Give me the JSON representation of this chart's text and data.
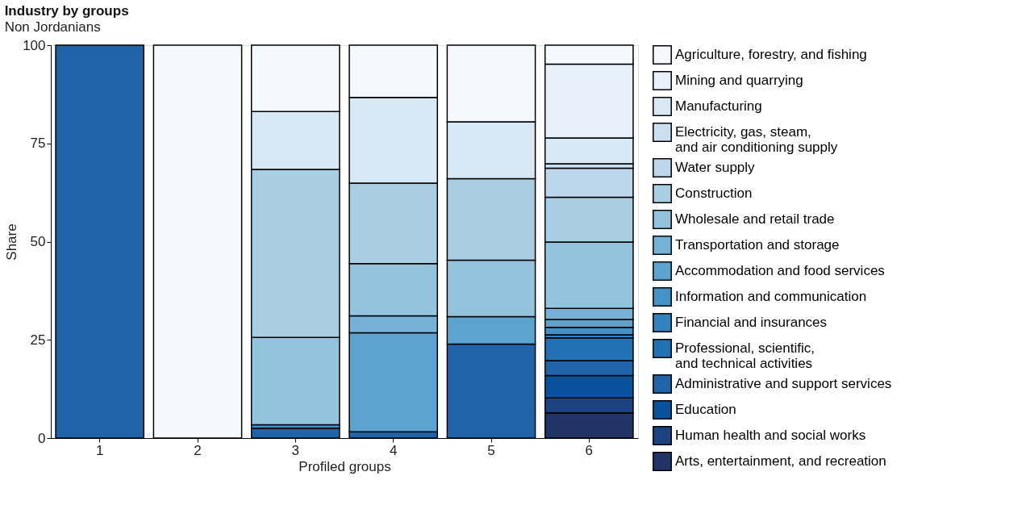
{
  "chart_data": {
    "type": "bar",
    "title": "Industry by groups",
    "subtitle": "Non Jordanians",
    "xlabel": "Profiled groups",
    "ylabel": "Share",
    "categories": [
      "1",
      "2",
      "3",
      "4",
      "5",
      "6"
    ],
    "stacked": true,
    "ylim": [
      0,
      100
    ],
    "yticks": [
      0,
      25,
      50,
      75,
      100
    ],
    "grid": false,
    "legend": "right",
    "series": [
      {
        "name": "Arts, entertainment, and recreation",
        "color": "#223366",
        "values": [
          null,
          null,
          null,
          null,
          null,
          6.4
        ]
      },
      {
        "name": "Human health and social works",
        "color": "#1c4282",
        "values": [
          null,
          null,
          null,
          null,
          null,
          3.8
        ]
      },
      {
        "name": "Education",
        "color": "#08519c",
        "values": [
          null,
          null,
          null,
          null,
          null,
          5.7
        ]
      },
      {
        "name": "Administrative and support services",
        "color": "#2163a8",
        "values": [
          100,
          null,
          2.5,
          1.6,
          23.9,
          3.8
        ]
      },
      {
        "name": "Professional, scientific,\n and technical activities",
        "color": "#2171b5",
        "values": [
          null,
          null,
          null,
          null,
          null,
          5.8
        ]
      },
      {
        "name": "Financial and insurances",
        "color": "#3282c0",
        "values": [
          null,
          null,
          null,
          null,
          null,
          0.8
        ]
      },
      {
        "name": "Information and communication",
        "color": "#4493c8",
        "values": [
          null,
          null,
          0.9,
          null,
          null,
          1.9
        ]
      },
      {
        "name": "Accommodation and food services",
        "color": "#5ca3d0",
        "values": [
          null,
          null,
          null,
          25.2,
          7.0,
          2.0
        ]
      },
      {
        "name": "Transportation and storage",
        "color": "#76b2d8",
        "values": [
          null,
          null,
          null,
          4.3,
          null,
          2.8
        ]
      },
      {
        "name": "Wholesale and retail trade",
        "color": "#94c3de",
        "values": [
          null,
          null,
          22.2,
          13.3,
          14.4,
          16.9
        ]
      },
      {
        "name": "Construction",
        "color": "#a9cde3",
        "values": [
          null,
          null,
          42.8,
          20.5,
          20.7,
          11.4
        ]
      },
      {
        "name": "Water supply",
        "color": "#bdd6ec",
        "values": [
          null,
          null,
          null,
          null,
          null,
          7.4
        ]
      },
      {
        "name": "Electricity, gas, steam,\n and air conditioning supply",
        "color": "#cbdff0",
        "values": [
          null,
          null,
          null,
          null,
          null,
          1.1
        ]
      },
      {
        "name": "Manufacturing",
        "color": "#d8e8f5",
        "values": [
          null,
          null,
          14.7,
          21.8,
          14.5,
          6.6
        ]
      },
      {
        "name": "Mining and quarrying",
        "color": "#e8f1f9",
        "values": [
          null,
          null,
          null,
          null,
          null,
          18.8
        ]
      },
      {
        "name": "Agriculture, forestry, and fishing",
        "color": "#f5f9fd",
        "values": [
          null,
          100,
          16.9,
          13.3,
          19.5,
          4.8
        ]
      }
    ]
  }
}
